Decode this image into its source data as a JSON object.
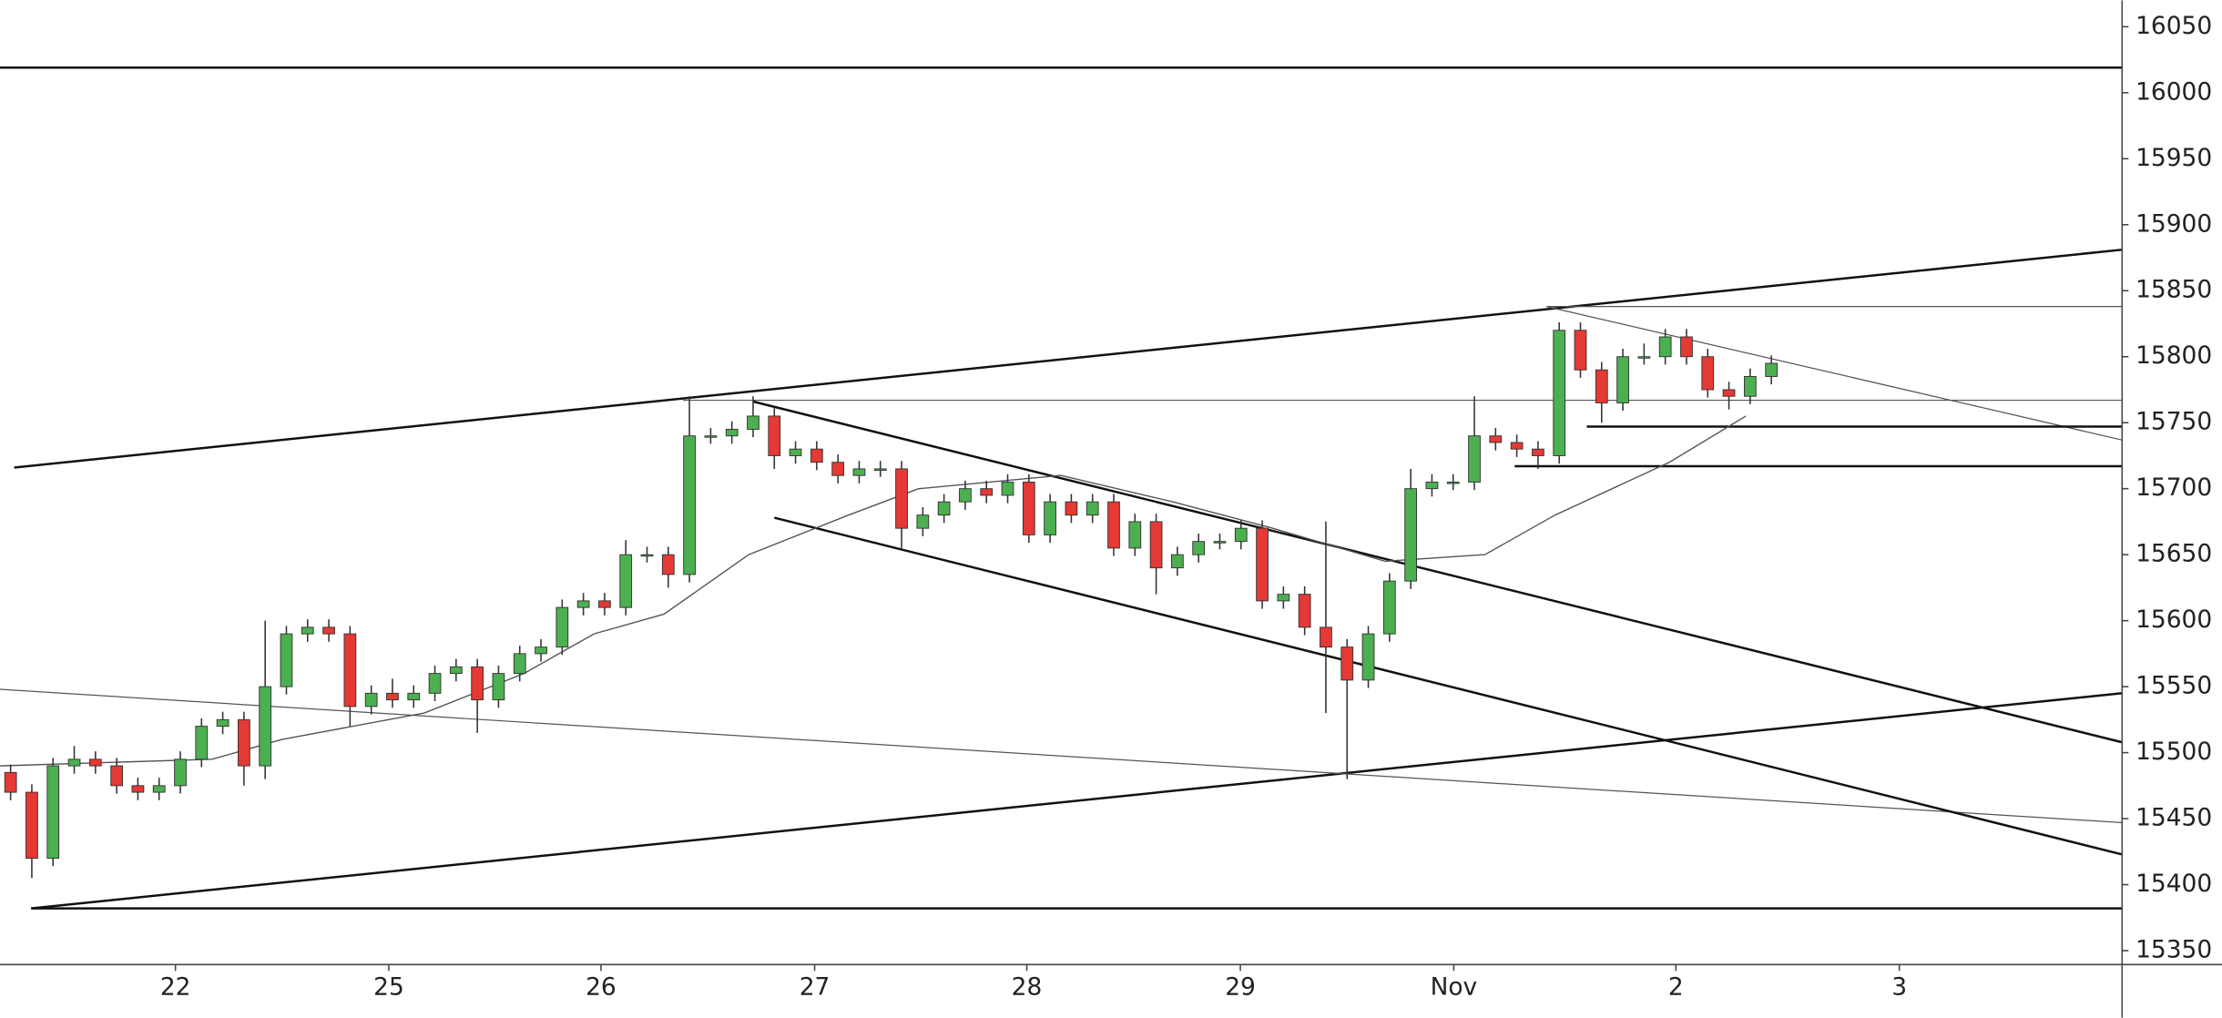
{
  "chart_data": {
    "type": "candlestick",
    "up_color": "#4caf50",
    "down_color": "#e53935",
    "wick_color": "#333333",
    "xlim": [
      0,
      100
    ],
    "ylim": [
      15340,
      16070
    ],
    "xticks": [
      {
        "value": 8.27,
        "label": "22"
      },
      {
        "value": 18.33,
        "label": "25"
      },
      {
        "value": 28.33,
        "label": "26"
      },
      {
        "value": 38.4,
        "label": "27"
      },
      {
        "value": 48.4,
        "label": "28"
      },
      {
        "value": 58.47,
        "label": "29"
      },
      {
        "value": 68.53,
        "label": "Nov"
      },
      {
        "value": 79,
        "label": "2"
      },
      {
        "value": 89.53,
        "label": "3"
      }
    ],
    "yticks": [
      15350,
      15400,
      15450,
      15500,
      15550,
      15600,
      15650,
      15700,
      15750,
      15800,
      15850,
      15900,
      15950,
      16000,
      16050
    ],
    "open": [
      15485,
      15470,
      15420,
      15490,
      15495,
      15490,
      15475,
      15470,
      15475,
      15495,
      15520,
      15525,
      15490,
      15550,
      15590,
      15595,
      15590,
      15535,
      15545,
      15540,
      15545,
      15560,
      15565,
      15540,
      15560,
      15575,
      15580,
      15610,
      15615,
      15610,
      15650,
      15650,
      15635,
      15740,
      15740,
      15745,
      15755,
      15725,
      15730,
      15720,
      15710,
      15715,
      15715,
      15670,
      15680,
      15690,
      15700,
      15695,
      15705,
      15665,
      15690,
      15680,
      15690,
      15655,
      15675,
      15640,
      15650,
      15660,
      15660,
      15670,
      15615,
      15620,
      15595,
      15580,
      15555,
      15590,
      15630,
      15700,
      15705,
      15705,
      15740,
      15735,
      15730,
      15725,
      15820,
      15790,
      15765,
      15800,
      15800,
      15815,
      15800,
      15775,
      15770,
      15785
    ],
    "high": [
      15491,
      15476,
      15496,
      15505,
      15501,
      15496,
      15481,
      15481,
      15501,
      15526,
      15531,
      15531,
      15600,
      15596,
      15601,
      15601,
      15596,
      15551,
      15556,
      15551,
      15566,
      15571,
      15571,
      15566,
      15581,
      15586,
      15616,
      15621,
      15621,
      15661,
      15656,
      15656,
      15770,
      15746,
      15751,
      15770,
      15761,
      15736,
      15736,
      15726,
      15721,
      15721,
      15721,
      15686,
      15696,
      15706,
      15706,
      15711,
      15711,
      15696,
      15696,
      15696,
      15696,
      15681,
      15681,
      15656,
      15666,
      15666,
      15676,
      15676,
      15626,
      15626,
      15675,
      15586,
      15596,
      15636,
      15715,
      15711,
      15711,
      15770,
      15746,
      15741,
      15736,
      15826,
      15826,
      15796,
      15806,
      15810,
      15821,
      15821,
      15806,
      15781,
      15791,
      15801
    ],
    "low": [
      15464,
      15405,
      15414,
      15484,
      15484,
      15469,
      15464,
      15464,
      15469,
      15489,
      15514,
      15475,
      15480,
      15544,
      15584,
      15584,
      15520,
      15529,
      15534,
      15534,
      15539,
      15554,
      15515,
      15534,
      15554,
      15569,
      15574,
      15604,
      15604,
      15604,
      15644,
      15625,
      15629,
      15734,
      15734,
      15739,
      15715,
      15719,
      15714,
      15704,
      15704,
      15709,
      15655,
      15664,
      15674,
      15684,
      15689,
      15689,
      15659,
      15659,
      15674,
      15674,
      15649,
      15649,
      15620,
      15634,
      15644,
      15654,
      15654,
      15609,
      15609,
      15589,
      15530,
      15480,
      15549,
      15584,
      15624,
      15694,
      15699,
      15699,
      15729,
      15724,
      15715,
      15719,
      15784,
      15750,
      15759,
      15794,
      15794,
      15794,
      15769,
      15760,
      15764,
      15779
    ],
    "close": [
      15470,
      15420,
      15490,
      15495,
      15490,
      15475,
      15470,
      15475,
      15495,
      15520,
      15525,
      15490,
      15550,
      15590,
      15595,
      15590,
      15535,
      15545,
      15540,
      15545,
      15560,
      15565,
      15540,
      15560,
      15575,
      15580,
      15610,
      15615,
      15610,
      15650,
      15650,
      15635,
      15740,
      15740,
      15745,
      15755,
      15725,
      15730,
      15720,
      15710,
      15715,
      15715,
      15670,
      15680,
      15690,
      15700,
      15695,
      15705,
      15665,
      15690,
      15680,
      15690,
      15655,
      15675,
      15640,
      15650,
      15660,
      15660,
      15670,
      15615,
      15620,
      15595,
      15580,
      15555,
      15590,
      15630,
      15700,
      15705,
      15705,
      15740,
      15735,
      15730,
      15725,
      15820,
      15790,
      15765,
      15800,
      15800,
      15815,
      15800,
      15775,
      15770,
      15785,
      15795
    ],
    "moving_average": {
      "color": "#555555",
      "x": [
        0,
        10,
        13.3,
        20,
        24.7,
        28,
        31.3,
        35.3,
        40,
        43.3,
        50,
        55.3,
        60,
        65.3,
        70,
        73.3,
        78.7,
        82.3
      ],
      "values": [
        15490,
        15495,
        15510,
        15530,
        15560,
        15590,
        15605,
        15650,
        15680,
        15700,
        15710,
        15690,
        15670,
        15645,
        15650,
        15680,
        15720,
        15755
      ]
    },
    "trendlines": [
      {
        "color": "#111111",
        "weight": 1.6,
        "x": [
          0,
          100
        ],
        "y": [
          16019,
          16019
        ]
      },
      {
        "color": "#111111",
        "weight": 1.6,
        "x": [
          0.67,
          100
        ],
        "y": [
          15716,
          15881
        ]
      },
      {
        "color": "#111111",
        "weight": 1.6,
        "x": [
          1.47,
          100
        ],
        "y": [
          15382,
          15545
        ]
      },
      {
        "color": "#111111",
        "weight": 1.6,
        "x": [
          1.47,
          100
        ],
        "y": [
          15382,
          15382
        ]
      },
      {
        "color": "#555555",
        "weight": 0.8,
        "x": [
          0,
          100
        ],
        "y": [
          15548,
          15447
        ]
      },
      {
        "color": "#111111",
        "weight": 1.6,
        "x": [
          35.5,
          100
        ],
        "y": [
          15766,
          15508
        ]
      },
      {
        "color": "#111111",
        "weight": 1.6,
        "x": [
          36.5,
          100
        ],
        "y": [
          15678,
          15423
        ]
      },
      {
        "color": "#555555",
        "weight": 0.8,
        "x": [
          32.2,
          100
        ],
        "y": [
          15767,
          15767
        ]
      },
      {
        "color": "#555555",
        "weight": 0.8,
        "x": [
          72.9,
          100
        ],
        "y": [
          15838,
          15838
        ]
      },
      {
        "color": "#555555",
        "weight": 0.8,
        "x": [
          72.9,
          100
        ],
        "y": [
          15838,
          15737
        ]
      },
      {
        "color": "#111111",
        "weight": 1.6,
        "x": [
          74.8,
          100
        ],
        "y": [
          15747,
          15747
        ]
      },
      {
        "color": "#111111",
        "weight": 1.6,
        "x": [
          71.4,
          100
        ],
        "y": [
          15717,
          15717
        ]
      }
    ]
  }
}
